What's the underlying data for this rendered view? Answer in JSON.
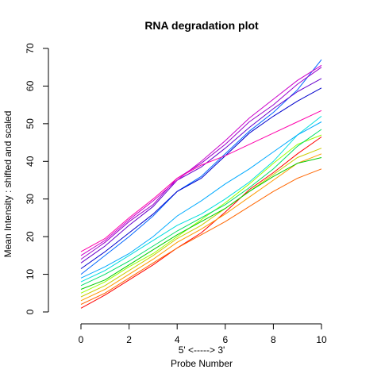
{
  "chart_data": {
    "type": "line",
    "title": "RNA degradation plot",
    "xlabel_top": "5' <-----> 3'",
    "xlabel": "Probe Number",
    "ylabel": "Mean Intensity : shifted and scaled",
    "xlim": [
      0,
      10
    ],
    "ylim": [
      0,
      70
    ],
    "xticks": [
      "0",
      "2",
      "4",
      "6",
      "8",
      "10"
    ],
    "yticks": [
      "0",
      "10",
      "20",
      "30",
      "40",
      "50",
      "60",
      "70"
    ],
    "grid": false,
    "x": [
      0,
      1,
      2,
      3,
      4,
      5,
      6,
      7,
      8,
      9,
      10
    ],
    "series": [
      {
        "color": "#FF0000",
        "values": [
          1.0,
          4.5,
          8.5,
          12.5,
          17.0,
          21.0,
          26.5,
          32.5,
          37.0,
          42.0,
          46.5
        ]
      },
      {
        "color": "#FF6600",
        "values": [
          2.0,
          5.0,
          9.0,
          13.0,
          17.0,
          20.5,
          24.0,
          28.0,
          32.0,
          35.5,
          38.0
        ]
      },
      {
        "color": "#FF9900",
        "values": [
          3.0,
          6.0,
          10.0,
          14.0,
          18.5,
          22.0,
          26.0,
          30.5,
          35.0,
          39.5,
          42.0
        ]
      },
      {
        "color": "#CCCC00",
        "values": [
          4.0,
          7.0,
          11.0,
          15.0,
          19.5,
          23.0,
          27.5,
          32.0,
          36.5,
          41.0,
          43.5
        ]
      },
      {
        "color": "#99FF00",
        "values": [
          5.0,
          8.0,
          12.0,
          15.5,
          20.0,
          24.5,
          29.0,
          34.0,
          39.5,
          44.5,
          47.0
        ]
      },
      {
        "color": "#00CC00",
        "values": [
          6.0,
          8.5,
          12.5,
          16.5,
          20.5,
          24.0,
          27.5,
          32.0,
          36.0,
          39.5,
          41.0
        ]
      },
      {
        "color": "#00DD66",
        "values": [
          7.0,
          10.0,
          13.5,
          17.5,
          21.5,
          25.0,
          28.5,
          33.0,
          38.0,
          44.0,
          48.5
        ]
      },
      {
        "color": "#00DDDD",
        "values": [
          8.0,
          11.0,
          15.0,
          19.0,
          23.0,
          26.0,
          30.0,
          34.5,
          40.0,
          47.0,
          52.0
        ]
      },
      {
        "color": "#00AAFF",
        "values": [
          9.0,
          12.0,
          15.5,
          20.0,
          25.5,
          29.5,
          34.0,
          38.0,
          42.5,
          47.0,
          50.5
        ]
      },
      {
        "color": "#0066FF",
        "values": [
          10.0,
          15.0,
          20.0,
          25.5,
          32.0,
          36.0,
          42.0,
          48.0,
          53.0,
          59.0,
          67.0
        ]
      },
      {
        "color": "#0000CC",
        "values": [
          11.5,
          16.0,
          21.0,
          26.0,
          32.0,
          35.5,
          41.5,
          47.5,
          52.0,
          56.0,
          59.5
        ]
      },
      {
        "color": "#6600CC",
        "values": [
          13.0,
          17.5,
          23.0,
          28.0,
          35.0,
          38.5,
          43.5,
          49.0,
          54.0,
          58.5,
          62.0
        ]
      },
      {
        "color": "#9900CC",
        "values": [
          14.0,
          18.5,
          24.0,
          28.5,
          35.5,
          39.5,
          44.5,
          50.5,
          55.0,
          60.5,
          65.0
        ]
      },
      {
        "color": "#CC00CC",
        "values": [
          15.0,
          19.0,
          24.5,
          29.5,
          35.0,
          40.0,
          45.5,
          51.5,
          56.5,
          61.5,
          65.5
        ]
      },
      {
        "color": "#FF00AA",
        "values": [
          16.0,
          19.5,
          25.0,
          30.0,
          35.5,
          39.0,
          41.5,
          44.5,
          47.5,
          50.5,
          53.5
        ]
      }
    ]
  }
}
